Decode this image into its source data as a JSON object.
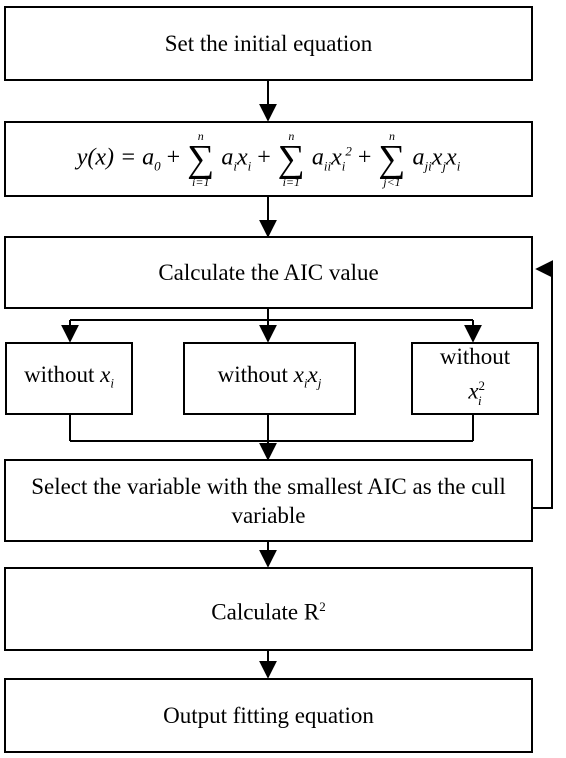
{
  "steps": {
    "initial": "Set the initial equation",
    "equation": {
      "lhs": "y(x) = a",
      "lhs_sub": "0",
      "plus": "+",
      "sum_upper": "n",
      "sum_lower_1": "i=1",
      "sum_lower_2": "i=1",
      "sum_lower_3": "j<1",
      "term1": "a",
      "term1_sub": "i",
      "term1_var": "x",
      "term1_var_sub": "i",
      "term2": "a",
      "term2_sub": "ii",
      "term2_var": "x",
      "term2_var_sub": "i",
      "term2_sup": "2",
      "term3": "a",
      "term3_sub": "ji",
      "term3_var1": "x",
      "term3_var1_sub": "j",
      "term3_var2": "x",
      "term3_var2_sub": "i"
    },
    "aic": "Calculate the AIC value",
    "without_label": "without",
    "branch1_var": "x",
    "branch1_sub": "i",
    "branch2_var1": "x",
    "branch2_sub1": "i",
    "branch2_var2": "x",
    "branch2_sub2": "j",
    "branch3_var": "x",
    "branch3_sub": "i",
    "branch3_sup": "2",
    "select": "Select the variable with the smallest AIC as the cull variable",
    "r2": "Calculate R",
    "r2_sup": "2",
    "output": "Output fitting equation"
  }
}
